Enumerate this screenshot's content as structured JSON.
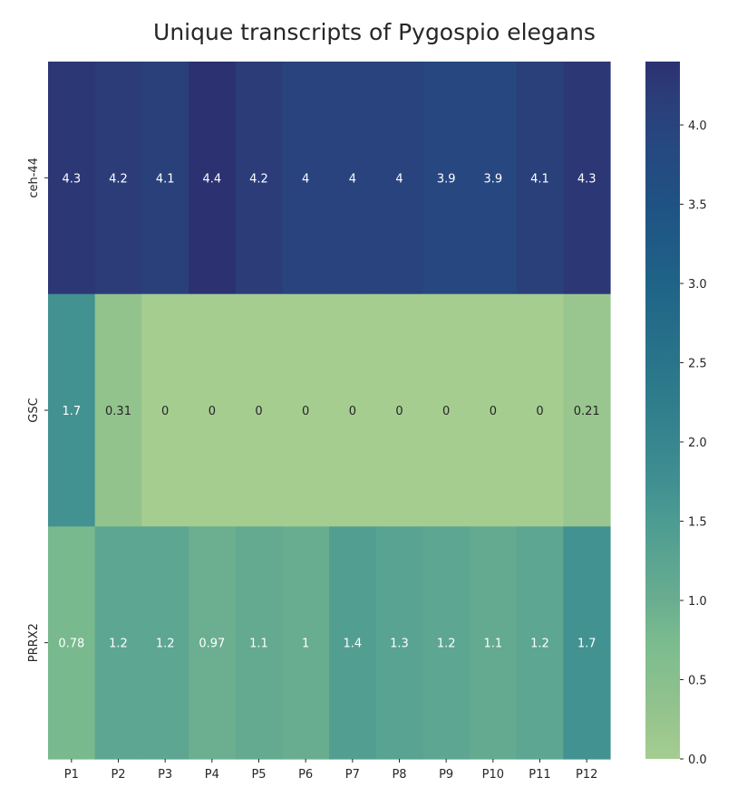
{
  "chart_data": {
    "type": "heatmap",
    "title": "Unique transcripts of Pygospio elegans",
    "xlabel": "",
    "ylabel": "",
    "columns": [
      "P1",
      "P2",
      "P3",
      "P4",
      "P5",
      "P6",
      "P7",
      "P8",
      "P9",
      "P10",
      "P11",
      "P12"
    ],
    "rows": [
      "ceh-44",
      "GSC",
      "PRRX2"
    ],
    "values": [
      [
        4.3,
        4.2,
        4.1,
        4.4,
        4.2,
        4.0,
        4.0,
        4.0,
        3.9,
        3.9,
        4.1,
        4.3
      ],
      [
        1.7,
        0.31,
        0,
        0,
        0,
        0,
        0,
        0,
        0,
        0,
        0,
        0.21
      ],
      [
        0.78,
        1.2,
        1.2,
        0.97,
        1.1,
        1.0,
        1.4,
        1.3,
        1.2,
        1.1,
        1.2,
        1.7
      ]
    ],
    "labels": [
      [
        "4.3",
        "4.2",
        "4.1",
        "4.4",
        "4.2",
        "4",
        "4",
        "4",
        "3.9",
        "3.9",
        "4.1",
        "4.3"
      ],
      [
        "1.7",
        "0.31",
        "0",
        "0",
        "0",
        "0",
        "0",
        "0",
        "0",
        "0",
        "0",
        "0.21"
      ],
      [
        "0.78",
        "1.2",
        "1.2",
        "0.97",
        "1.1",
        "1",
        "1.4",
        "1.3",
        "1.2",
        "1.1",
        "1.2",
        "1.7"
      ]
    ],
    "colormap": "crest",
    "color_range": [
      0,
      4.4
    ],
    "colorbar_ticks": [
      "0.0",
      "0.5",
      "1.0",
      "1.5",
      "2.0",
      "2.5",
      "3.0",
      "3.5",
      "4.0"
    ],
    "colorbar_tick_values": [
      0,
      0.5,
      1.0,
      1.5,
      2.0,
      2.5,
      3.0,
      3.5,
      4.0
    ],
    "colorbar_stops": [
      {
        "v": 0.0,
        "color": "#a5cd90"
      },
      {
        "v": 0.3,
        "color": "#94c38d"
      },
      {
        "v": 0.75,
        "color": "#7abb8e"
      },
      {
        "v": 1.0,
        "color": "#69ad90"
      },
      {
        "v": 1.5,
        "color": "#4c9c92"
      },
      {
        "v": 1.75,
        "color": "#408f91"
      },
      {
        "v": 2.25,
        "color": "#2f7d8c"
      },
      {
        "v": 3.0,
        "color": "#1f6387"
      },
      {
        "v": 3.5,
        "color": "#1f5284"
      },
      {
        "v": 3.9,
        "color": "#274780"
      },
      {
        "v": 4.2,
        "color": "#2b3c79"
      },
      {
        "v": 4.4,
        "color": "#2c3172"
      }
    ]
  }
}
